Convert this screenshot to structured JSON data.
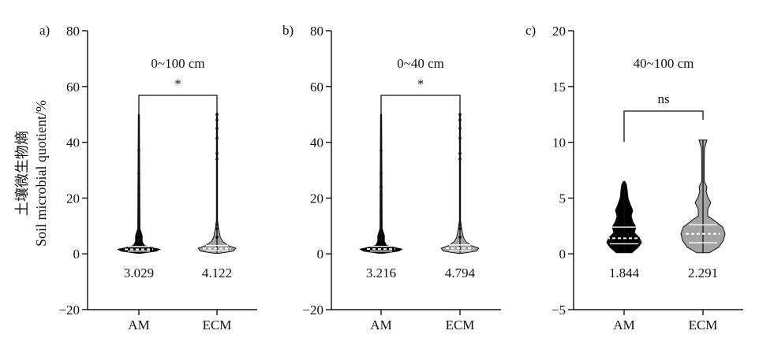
{
  "y_label_cn": "土壤微生物熵",
  "y_label_en": "Soil microbial quotient/%",
  "colors": {
    "AM": "#000000",
    "ECM": "#a3a3a3",
    "axis": "#111111"
  },
  "chart_data": [
    {
      "panel": "a)",
      "type": "violin",
      "title": "0~100 cm",
      "categories": [
        "AM",
        "ECM"
      ],
      "ylim": [
        -20,
        80
      ],
      "yticks": [
        -20,
        0,
        20,
        40,
        60,
        80
      ],
      "ytick_labels": [
        "−20",
        "0",
        "20",
        "40",
        "60",
        "80"
      ],
      "significance": "*",
      "series": [
        {
          "name": "AM",
          "mean_label": "3.029",
          "min": 0.2,
          "max": 50,
          "median": 1.6,
          "q1": 1.0,
          "q3": 2.6,
          "outliers": [
            5,
            7,
            9,
            11,
            15,
            21,
            24,
            29,
            37
          ],
          "profile": [
            [
              0.2,
              2
            ],
            [
              1.0,
              16
            ],
            [
              1.6,
              19
            ],
            [
              2.2,
              12
            ],
            [
              3.0,
              5
            ],
            [
              4.5,
              3
            ],
            [
              6.5,
              3
            ],
            [
              9,
              1
            ],
            [
              50,
              0.5
            ]
          ]
        },
        {
          "name": "ECM",
          "mean_label": "4.122",
          "min": 0.2,
          "max": 50,
          "median": 1.9,
          "q1": 1.1,
          "q3": 3.0,
          "outliers": [
            6,
            9,
            10.5,
            34,
            36,
            41.5,
            45,
            48,
            50
          ],
          "profile": [
            [
              0.2,
              2
            ],
            [
              1.0,
              15
            ],
            [
              2.0,
              17
            ],
            [
              3.0,
              10
            ],
            [
              4.5,
              5
            ],
            [
              6,
              3
            ],
            [
              9,
              1.5
            ],
            [
              12,
              0.5
            ],
            [
              50,
              0.5
            ]
          ]
        }
      ]
    },
    {
      "panel": "b)",
      "type": "violin",
      "title": "0~40 cm",
      "categories": [
        "AM",
        "ECM"
      ],
      "ylim": [
        -20,
        80
      ],
      "yticks": [
        -20,
        0,
        20,
        40,
        60,
        80
      ],
      "ytick_labels": [
        "−20",
        "0",
        "20",
        "40",
        "60",
        "80"
      ],
      "significance": "*",
      "series": [
        {
          "name": "AM",
          "mean_label": "3.216",
          "min": 0.2,
          "max": 50,
          "median": 1.7,
          "q1": 1.0,
          "q3": 2.7,
          "outliers": [
            5,
            7,
            9,
            11,
            15,
            21,
            24,
            29,
            37
          ],
          "profile": [
            [
              0.2,
              2
            ],
            [
              1.0,
              16
            ],
            [
              1.7,
              19
            ],
            [
              2.3,
              12
            ],
            [
              3.0,
              5
            ],
            [
              4.5,
              3
            ],
            [
              6.5,
              3
            ],
            [
              9,
              1
            ],
            [
              50,
              0.5
            ]
          ]
        },
        {
          "name": "ECM",
          "mean_label": "4.794",
          "min": 0.2,
          "max": 50,
          "median": 2.0,
          "q1": 1.1,
          "q3": 3.2,
          "outliers": [
            6,
            9,
            10.5,
            34,
            36,
            41.5,
            45,
            48,
            50
          ],
          "profile": [
            [
              0.2,
              2
            ],
            [
              1.0,
              15
            ],
            [
              2.0,
              17
            ],
            [
              3.0,
              10
            ],
            [
              4.5,
              5
            ],
            [
              6,
              3
            ],
            [
              9,
              1.5
            ],
            [
              12,
              0.5
            ],
            [
              50,
              0.5
            ]
          ]
        }
      ]
    },
    {
      "panel": "c)",
      "type": "violin",
      "title": "40~100 cm",
      "categories": [
        "AM",
        "ECM"
      ],
      "ylim": [
        -5,
        20
      ],
      "yticks": [
        -5,
        0,
        5,
        10,
        15,
        20
      ],
      "ytick_labels": [
        "−5",
        "0",
        "5",
        "10",
        "15",
        "20"
      ],
      "significance": "ns",
      "series": [
        {
          "name": "AM",
          "mean_label": "1.844",
          "min": 0.1,
          "max": 6.5,
          "median": 1.4,
          "q1": 0.9,
          "q3": 2.4,
          "outliers": [],
          "profile": [
            [
              0.1,
              10
            ],
            [
              0.6,
              18
            ],
            [
              1.0,
              22
            ],
            [
              1.4,
              20
            ],
            [
              1.9,
              13
            ],
            [
              2.4,
              15
            ],
            [
              2.9,
              11
            ],
            [
              3.4,
              9
            ],
            [
              3.9,
              11
            ],
            [
              4.4,
              8
            ],
            [
              5.0,
              5
            ],
            [
              5.7,
              4
            ],
            [
              6.2,
              3
            ],
            [
              6.5,
              1
            ]
          ]
        },
        {
          "name": "ECM",
          "mean_label": "2.291",
          "min": 0.1,
          "max": 10.2,
          "median": 1.8,
          "q1": 1.0,
          "q3": 2.6,
          "outliers": [],
          "profile": [
            [
              0.1,
              8
            ],
            [
              0.6,
              20
            ],
            [
              1.2,
              26
            ],
            [
              1.8,
              28
            ],
            [
              2.4,
              25
            ],
            [
              3.0,
              14
            ],
            [
              3.4,
              6
            ],
            [
              4.0,
              6
            ],
            [
              4.6,
              10
            ],
            [
              5.1,
              6
            ],
            [
              5.6,
              4
            ],
            [
              6.0,
              5
            ],
            [
              6.5,
              1.5
            ],
            [
              8,
              1.5
            ],
            [
              9.5,
              2
            ],
            [
              10.2,
              5
            ]
          ]
        }
      ]
    }
  ]
}
